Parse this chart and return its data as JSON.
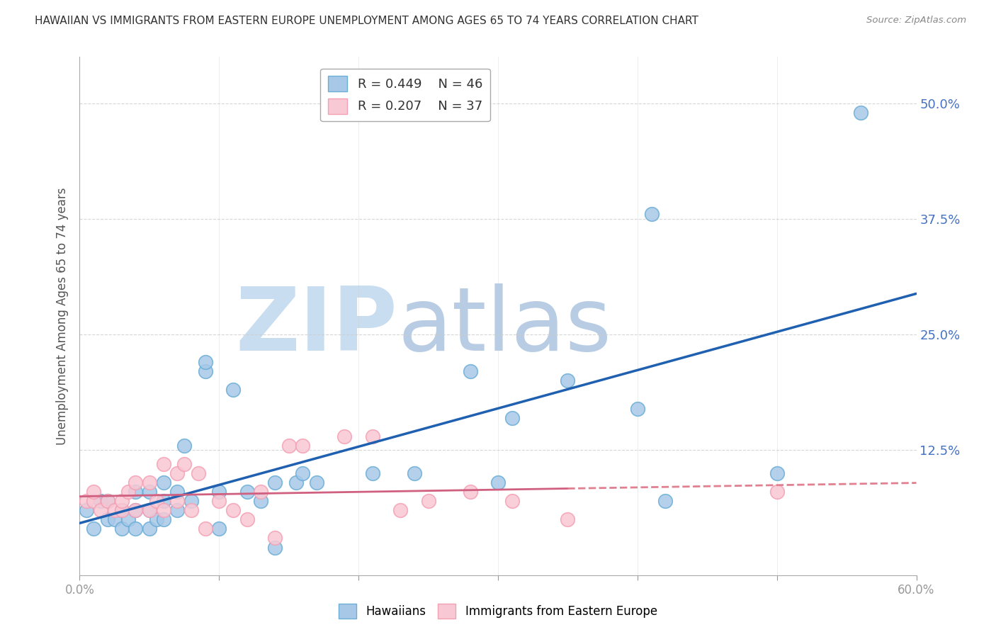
{
  "title": "HAWAIIAN VS IMMIGRANTS FROM EASTERN EUROPE UNEMPLOYMENT AMONG AGES 65 TO 74 YEARS CORRELATION CHART",
  "source": "Source: ZipAtlas.com",
  "ylabel": "Unemployment Among Ages 65 to 74 years",
  "xlim": [
    0.0,
    0.6
  ],
  "ylim": [
    -0.01,
    0.55
  ],
  "xticks": [
    0.0,
    0.1,
    0.2,
    0.3,
    0.4,
    0.5,
    0.6
  ],
  "yticks": [
    0.0,
    0.125,
    0.25,
    0.375,
    0.5
  ],
  "ytick_labels": [
    "",
    "12.5%",
    "25.0%",
    "37.5%",
    "50.0%"
  ],
  "xtick_labels_show": [
    "0.0%",
    "60.0%"
  ],
  "legend_blue_r": "R = 0.449",
  "legend_blue_n": "N = 46",
  "legend_pink_r": "R = 0.207",
  "legend_pink_n": "N = 37",
  "hawaiians_x": [
    0.005,
    0.01,
    0.015,
    0.02,
    0.02,
    0.025,
    0.03,
    0.03,
    0.035,
    0.04,
    0.04,
    0.04,
    0.05,
    0.05,
    0.05,
    0.055,
    0.06,
    0.06,
    0.06,
    0.07,
    0.07,
    0.075,
    0.08,
    0.09,
    0.09,
    0.1,
    0.1,
    0.11,
    0.12,
    0.13,
    0.14,
    0.14,
    0.155,
    0.16,
    0.17,
    0.21,
    0.24,
    0.28,
    0.3,
    0.31,
    0.35,
    0.4,
    0.41,
    0.42,
    0.5,
    0.56
  ],
  "hawaiians_y": [
    0.06,
    0.04,
    0.07,
    0.05,
    0.07,
    0.05,
    0.04,
    0.06,
    0.05,
    0.04,
    0.06,
    0.08,
    0.04,
    0.06,
    0.08,
    0.05,
    0.05,
    0.07,
    0.09,
    0.06,
    0.08,
    0.13,
    0.07,
    0.21,
    0.22,
    0.04,
    0.08,
    0.19,
    0.08,
    0.07,
    0.02,
    0.09,
    0.09,
    0.1,
    0.09,
    0.1,
    0.1,
    0.21,
    0.09,
    0.16,
    0.2,
    0.17,
    0.38,
    0.07,
    0.1,
    0.49
  ],
  "eastern_europe_x": [
    0.005,
    0.01,
    0.01,
    0.015,
    0.02,
    0.025,
    0.03,
    0.03,
    0.035,
    0.04,
    0.04,
    0.05,
    0.05,
    0.055,
    0.06,
    0.06,
    0.07,
    0.07,
    0.075,
    0.08,
    0.085,
    0.09,
    0.1,
    0.11,
    0.12,
    0.13,
    0.14,
    0.15,
    0.16,
    0.19,
    0.21,
    0.23,
    0.25,
    0.28,
    0.31,
    0.35,
    0.5
  ],
  "eastern_europe_y": [
    0.07,
    0.07,
    0.08,
    0.06,
    0.07,
    0.06,
    0.06,
    0.07,
    0.08,
    0.06,
    0.09,
    0.06,
    0.09,
    0.07,
    0.06,
    0.11,
    0.07,
    0.1,
    0.11,
    0.06,
    0.1,
    0.04,
    0.07,
    0.06,
    0.05,
    0.08,
    0.03,
    0.13,
    0.13,
    0.14,
    0.14,
    0.06,
    0.07,
    0.08,
    0.07,
    0.05,
    0.08
  ],
  "blue_marker_color": "#a8c8e8",
  "blue_marker_edge": "#6baed6",
  "pink_marker_color": "#f8c8d4",
  "pink_marker_edge": "#f4a0b4",
  "blue_line_color": "#2060b0",
  "pink_line_solid_color": "#d06080",
  "pink_line_dash_color": "#e08090",
  "background_color": "#ffffff",
  "grid_color": "#cccccc",
  "watermark_zip_color": "#c8ddf0",
  "watermark_atlas_color": "#b8cce4"
}
